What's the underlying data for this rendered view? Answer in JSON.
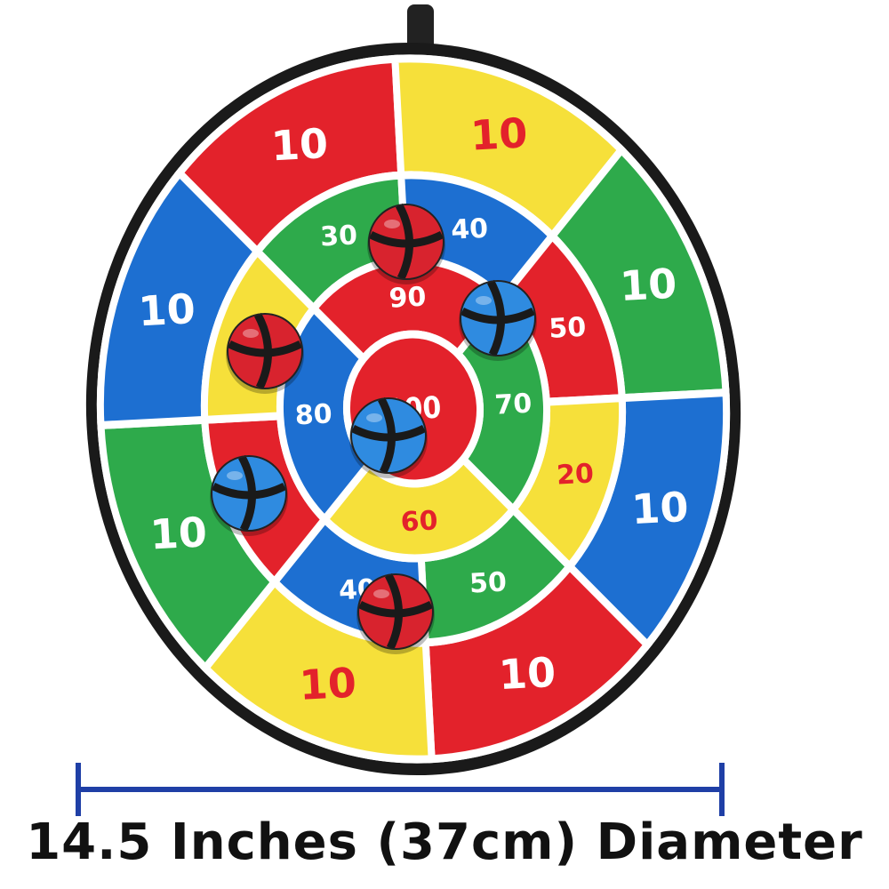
{
  "colors": {
    "red": "#e3222b",
    "yellow": "#f6e03a",
    "green": "#2eaa4b",
    "blue": "#1d6fd1",
    "scale": "#1f3fa6",
    "ball_red": "#d8232e",
    "ball_blue": "#2f8be0"
  },
  "board": {
    "outer_ring": [
      {
        "color": "red",
        "label": "10"
      },
      {
        "color": "yellow",
        "label": "10"
      },
      {
        "color": "green",
        "label": "10"
      },
      {
        "color": "blue",
        "label": "10"
      },
      {
        "color": "red",
        "label": "10"
      },
      {
        "color": "yellow",
        "label": "10"
      },
      {
        "color": "green",
        "label": "10"
      },
      {
        "color": "blue",
        "label": "10"
      }
    ],
    "middle_ring": [
      {
        "color": "green",
        "label": "30"
      },
      {
        "color": "blue",
        "label": "40"
      },
      {
        "color": "red",
        "label": "50"
      },
      {
        "color": "yellow",
        "label": "20"
      },
      {
        "color": "green",
        "label": "50"
      },
      {
        "color": "blue",
        "label": "40"
      },
      {
        "color": "red",
        "label": ""
      },
      {
        "color": "yellow",
        "label": ""
      }
    ],
    "inner_ring": [
      {
        "color": "red",
        "label": "90"
      },
      {
        "color": "green",
        "label": "70"
      },
      {
        "color": "yellow",
        "label": "60"
      },
      {
        "color": "blue",
        "label": "80"
      }
    ],
    "bullseye": {
      "color": "red",
      "label": "100"
    },
    "balls": [
      "red",
      "blue",
      "red",
      "blue",
      "blue",
      "red"
    ]
  },
  "caption": "14.5 Inches (37cm) Diameter"
}
